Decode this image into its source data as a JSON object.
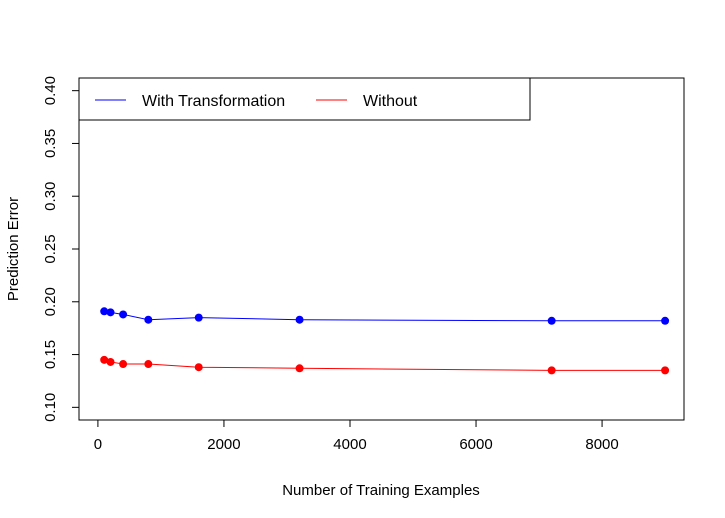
{
  "chart_data": {
    "type": "line",
    "title": "",
    "xlabel": "Number of Training Examples",
    "ylabel": "Prediction Error",
    "xlim": [
      -300,
      9300
    ],
    "ylim": [
      0.088,
      0.412
    ],
    "x_ticks": [
      {
        "value": 0,
        "label": "0"
      },
      {
        "value": 2000,
        "label": "2000"
      },
      {
        "value": 4000,
        "label": "4000"
      },
      {
        "value": 6000,
        "label": "6000"
      },
      {
        "value": 8000,
        "label": "8000"
      }
    ],
    "y_ticks": [
      {
        "value": 0.1,
        "label": "0.10"
      },
      {
        "value": 0.15,
        "label": "0.15"
      },
      {
        "value": 0.2,
        "label": "0.20"
      },
      {
        "value": 0.25,
        "label": "0.25"
      },
      {
        "value": 0.3,
        "label": "0.30"
      },
      {
        "value": 0.35,
        "label": "0.35"
      },
      {
        "value": 0.4,
        "label": "0.40"
      }
    ],
    "x": [
      100,
      200,
      400,
      800,
      1600,
      3200,
      7200,
      9000
    ],
    "series": [
      {
        "name": "With Transformation",
        "color": "#0000ff",
        "values": [
          0.191,
          0.19,
          0.188,
          0.183,
          0.185,
          0.183,
          0.182,
          0.182
        ]
      },
      {
        "name": "Without",
        "color": "#ff0000",
        "values": [
          0.145,
          0.143,
          0.141,
          0.141,
          0.138,
          0.137,
          0.135,
          0.135
        ]
      }
    ],
    "legend": {
      "position": "top-left",
      "orientation": "horizontal"
    },
    "grid": false
  }
}
